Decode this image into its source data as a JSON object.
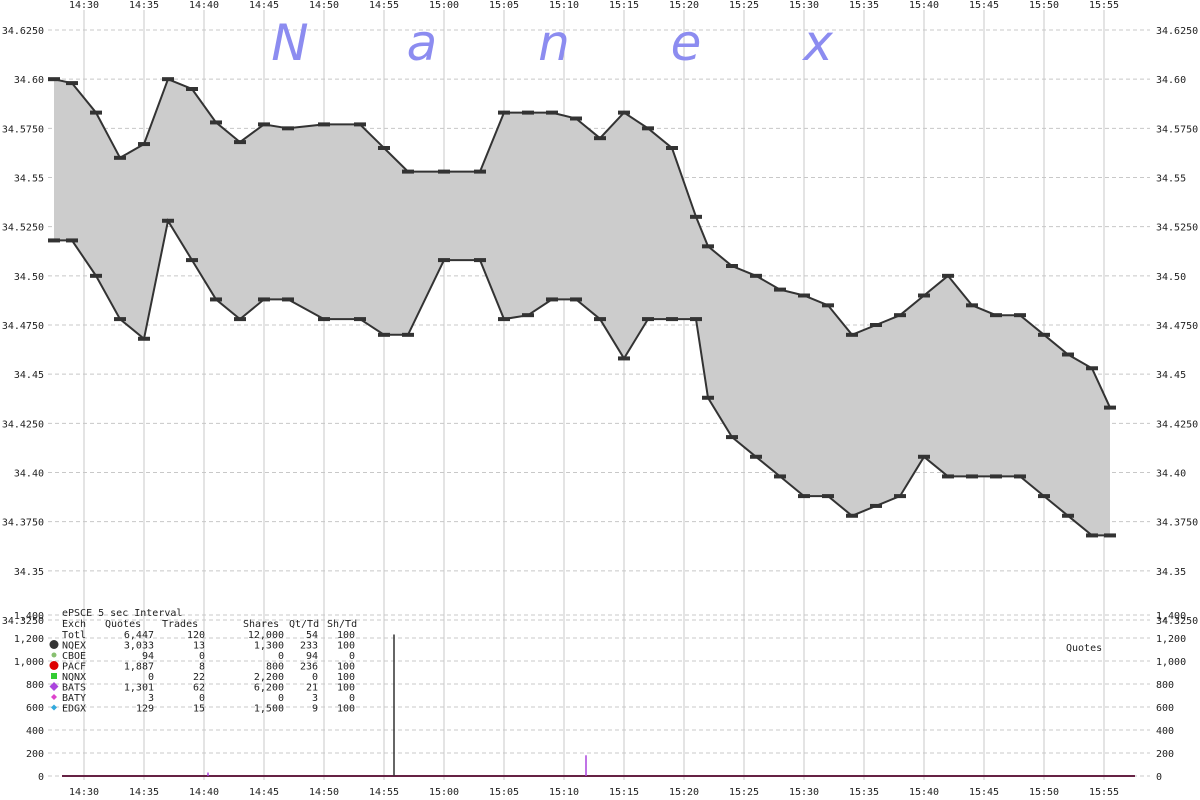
{
  "chart_data": {
    "type": "line",
    "watermark": [
      "N",
      "a",
      "n",
      "e",
      "x"
    ],
    "stats_title": "ePSCE 5 sec Interval",
    "stats_headers": [
      "Exch",
      "Quotes",
      "Trades",
      "Shares",
      "Qt/Td",
      "Sh/Td"
    ],
    "stats_rows": [
      {
        "exch": "Totl",
        "quotes": "6,447",
        "trades": "120",
        "shares": "12,000",
        "qt_td": "54",
        "sh_td": "100",
        "color": "",
        "marker": "none"
      },
      {
        "exch": "NQEX",
        "quotes": "3,033",
        "trades": "13",
        "shares": "1,300",
        "qt_td": "233",
        "sh_td": "100",
        "color": "#333333",
        "marker": "circle"
      },
      {
        "exch": "CBOE",
        "quotes": "94",
        "trades": "0",
        "shares": "0",
        "qt_td": "94",
        "sh_td": "0",
        "color": "#88c070",
        "marker": "dot"
      },
      {
        "exch": "PACF",
        "quotes": "1,887",
        "trades": "8",
        "shares": "800",
        "qt_td": "236",
        "sh_td": "100",
        "color": "#dd0000",
        "marker": "circle"
      },
      {
        "exch": "NQNX",
        "quotes": "0",
        "trades": "22",
        "shares": "2,200",
        "qt_td": "0",
        "sh_td": "100",
        "color": "#33cc33",
        "marker": "square"
      },
      {
        "exch": "BATS",
        "quotes": "1,301",
        "trades": "62",
        "shares": "6,200",
        "qt_td": "21",
        "sh_td": "100",
        "color": "#aa44dd",
        "marker": "diamond"
      },
      {
        "exch": "BATY",
        "quotes": "3",
        "trades": "0",
        "shares": "0",
        "qt_td": "3",
        "sh_td": "0",
        "color": "#dd44cc",
        "marker": "diamond-small"
      },
      {
        "exch": "EDGX",
        "quotes": "129",
        "trades": "15",
        "shares": "1,500",
        "qt_td": "9",
        "sh_td": "100",
        "color": "#33aadd",
        "marker": "diamond-small"
      }
    ],
    "x_ticks": [
      "14:30",
      "14:35",
      "14:40",
      "14:45",
      "14:50",
      "14:55",
      "15:00",
      "15:05",
      "15:10",
      "15:15",
      "15:20",
      "15:25",
      "15:30",
      "15:35",
      "15:40",
      "15:45",
      "15:50",
      "15:55"
    ],
    "price_ticks": [
      "34.6250",
      "34.60",
      "34.5750",
      "34.55",
      "34.5250",
      "34.50",
      "34.4750",
      "34.45",
      "34.4250",
      "34.40",
      "34.3750",
      "34.35",
      "34.3250"
    ],
    "volume_ticks": [
      "1,400",
      "1,200",
      "1,000",
      "800",
      "600",
      "400",
      "200",
      "0"
    ],
    "volume_label": "Quotes",
    "price_ylim": [
      34.325,
      34.625
    ],
    "volume_ylim": [
      0,
      1400
    ],
    "grid": true,
    "series": [
      {
        "color": "#333333",
        "x": [
          "14:27:30",
          "14:29:00",
          "14:31:00",
          "14:33:00",
          "14:35:00",
          "14:37:00",
          "14:39:00",
          "14:41:00",
          "14:43:00",
          "14:45:00",
          "14:47:00",
          "14:50:00",
          "14:53:00",
          "14:55:00",
          "14:57:00",
          "15:00:00",
          "15:03:00",
          "15:05:00",
          "15:07:00",
          "15:09:00",
          "15:11:00",
          "15:13:00",
          "15:15:00",
          "15:17:00",
          "15:19:00",
          "15:21:00",
          "15:22:00",
          "15:24:00",
          "15:26:00",
          "15:28:00",
          "15:30:00",
          "15:32:00",
          "15:34:00",
          "15:36:00",
          "15:38:00",
          "15:40:00",
          "15:42:00",
          "15:44:00",
          "15:46:00",
          "15:48:00",
          "15:50:00",
          "15:52:00",
          "15:54:00",
          "15:55:30"
        ],
        "values": [
          34.6,
          34.598,
          34.583,
          34.56,
          34.567,
          34.6,
          34.595,
          34.578,
          34.568,
          34.577,
          34.575,
          34.577,
          34.577,
          34.565,
          34.553,
          34.553,
          34.553,
          34.583,
          34.583,
          34.583,
          34.58,
          34.57,
          34.583,
          34.575,
          34.565,
          34.53,
          34.515,
          34.505,
          34.5,
          34.493,
          34.49,
          34.485,
          34.47,
          34.475,
          34.48,
          34.49,
          34.5,
          34.485,
          34.48,
          34.48,
          34.47,
          34.46,
          34.453,
          34.433
        ]
      },
      {
        "color": "#333333",
        "x": [
          "14:27:30",
          "14:29:00",
          "14:31:00",
          "14:33:00",
          "14:35:00",
          "14:37:00",
          "14:39:00",
          "14:41:00",
          "14:43:00",
          "14:45:00",
          "14:47:00",
          "14:50:00",
          "14:53:00",
          "14:55:00",
          "14:57:00",
          "15:00:00",
          "15:03:00",
          "15:05:00",
          "15:07:00",
          "15:09:00",
          "15:11:00",
          "15:13:00",
          "15:15:00",
          "15:17:00",
          "15:19:00",
          "15:21:00",
          "15:22:00",
          "15:24:00",
          "15:26:00",
          "15:28:00",
          "15:30:00",
          "15:32:00",
          "15:34:00",
          "15:36:00",
          "15:38:00",
          "15:40:00",
          "15:42:00",
          "15:44:00",
          "15:46:00",
          "15:48:00",
          "15:50:00",
          "15:52:00",
          "15:54:00",
          "15:55:30"
        ],
        "values": [
          34.518,
          34.518,
          34.5,
          34.478,
          34.468,
          34.528,
          34.508,
          34.488,
          34.478,
          34.488,
          34.488,
          34.478,
          34.478,
          34.47,
          34.47,
          34.508,
          34.508,
          34.478,
          34.48,
          34.488,
          34.488,
          34.478,
          34.458,
          34.478,
          34.478,
          34.478,
          34.438,
          34.418,
          34.408,
          34.398,
          34.388,
          34.388,
          34.378,
          34.383,
          34.388,
          34.408,
          34.398,
          34.398,
          34.398,
          34.398,
          34.388,
          34.378,
          34.368,
          34.368
        ]
      }
    ],
    "volume_spikes": [
      {
        "time": "14:55:50",
        "value": 1230,
        "color": "#333333"
      },
      {
        "time": "15:11:50",
        "value": 180,
        "color": "#aa44dd"
      },
      {
        "time": "14:40:20",
        "value": 30,
        "color": "#aa44dd"
      }
    ]
  }
}
